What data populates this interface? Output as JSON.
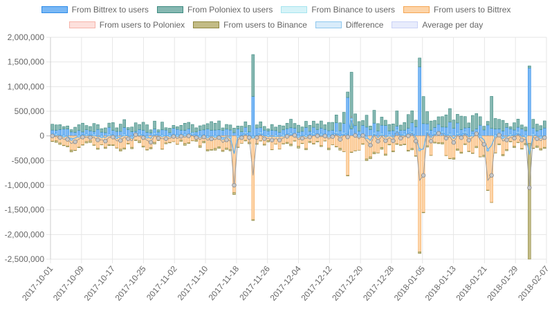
{
  "chart_data": {
    "type": "bar",
    "stacked": true,
    "grid": true,
    "legend_position": "top",
    "ylim": [
      -2500000,
      2000000
    ],
    "y_ticks": [
      "2,000,000",
      "1,500,000",
      "1,000,000",
      "500,000",
      "0",
      "-500,000",
      "-1,000,000",
      "-1,500,000",
      "-2,000,000",
      "-2,500,000"
    ],
    "x_tick_labels": [
      "2017-10-01",
      "2017-10-09",
      "2017-10-17",
      "2017-10-25",
      "2017-11-02",
      "2017-11-10",
      "2017-11-18",
      "2017-11-26",
      "2017-12-04",
      "2017-12-12",
      "2017-12-20",
      "2017-12-28",
      "2018-01-05",
      "2018-01-13",
      "2018-01-21",
      "2018-01-29",
      "2018-02-07"
    ],
    "start_date": "2017-10-01",
    "days": 131,
    "legend_rows": [
      [
        {
          "label": "From Bittrex to users",
          "fill": "#7ab8f5",
          "stroke": "#2a8ae8"
        },
        {
          "label": "From Poloniex to users",
          "fill": "#86b8b2",
          "stroke": "#3c8a80"
        },
        {
          "label": "From Binance to users",
          "fill": "#d6f3f8",
          "stroke": "#a5e4ee"
        },
        {
          "label": "From users to Bittrex",
          "fill": "#fdd4a8",
          "stroke": "#f5a653"
        }
      ],
      [
        {
          "label": "From users to Poloniex",
          "fill": "#fde0dc",
          "stroke": "#f6b3a9"
        },
        {
          "label": "From users to Binance",
          "fill": "#c2bb85",
          "stroke": "#8f8740"
        },
        {
          "label": "Difference",
          "fill": "#d8ecfa",
          "stroke": "#8ec7ee"
        },
        {
          "label": "Average per day",
          "fill": "#e8ecfc",
          "stroke": "#c9d1f6"
        }
      ]
    ],
    "series_colors": {
      "bittrex_out": {
        "fill": "#7ab8f5",
        "stroke": "#2a8ae8"
      },
      "poloniex_out": {
        "fill": "#86b8b2",
        "stroke": "#3c8a80"
      },
      "bittrex_in": {
        "fill": "#fdd4a8",
        "stroke": "#f5a653"
      },
      "binance_in": {
        "fill": "#c2bb85",
        "stroke": "#8f8740"
      },
      "difference": "#5aaef0",
      "average": "#9a9a9a"
    },
    "spikes": [
      {
        "day": 53,
        "bittrex_out": 800000,
        "poloniex_out": 850000,
        "bittrex_in": -1700000
      },
      {
        "day": 48,
        "bittrex_in": -1150000
      },
      {
        "day": 97,
        "bittrex_out": 1400000,
        "bittrex_in": -2350000
      },
      {
        "day": 98,
        "bittrex_out": 250000,
        "poloniex_out": 550000,
        "bittrex_in": -1550000
      },
      {
        "day": 126,
        "bittrex_out": 1380000,
        "binance_in": -2350000
      },
      {
        "day": 78,
        "bittrex_out": 780000,
        "bittrex_in": -800000
      },
      {
        "day": 79,
        "poloniex_out": 1150000
      },
      {
        "day": 116,
        "poloniex_out": 650000,
        "bittrex_in": -1350000
      },
      {
        "day": 115,
        "bittrex_in": -1100000
      }
    ]
  }
}
